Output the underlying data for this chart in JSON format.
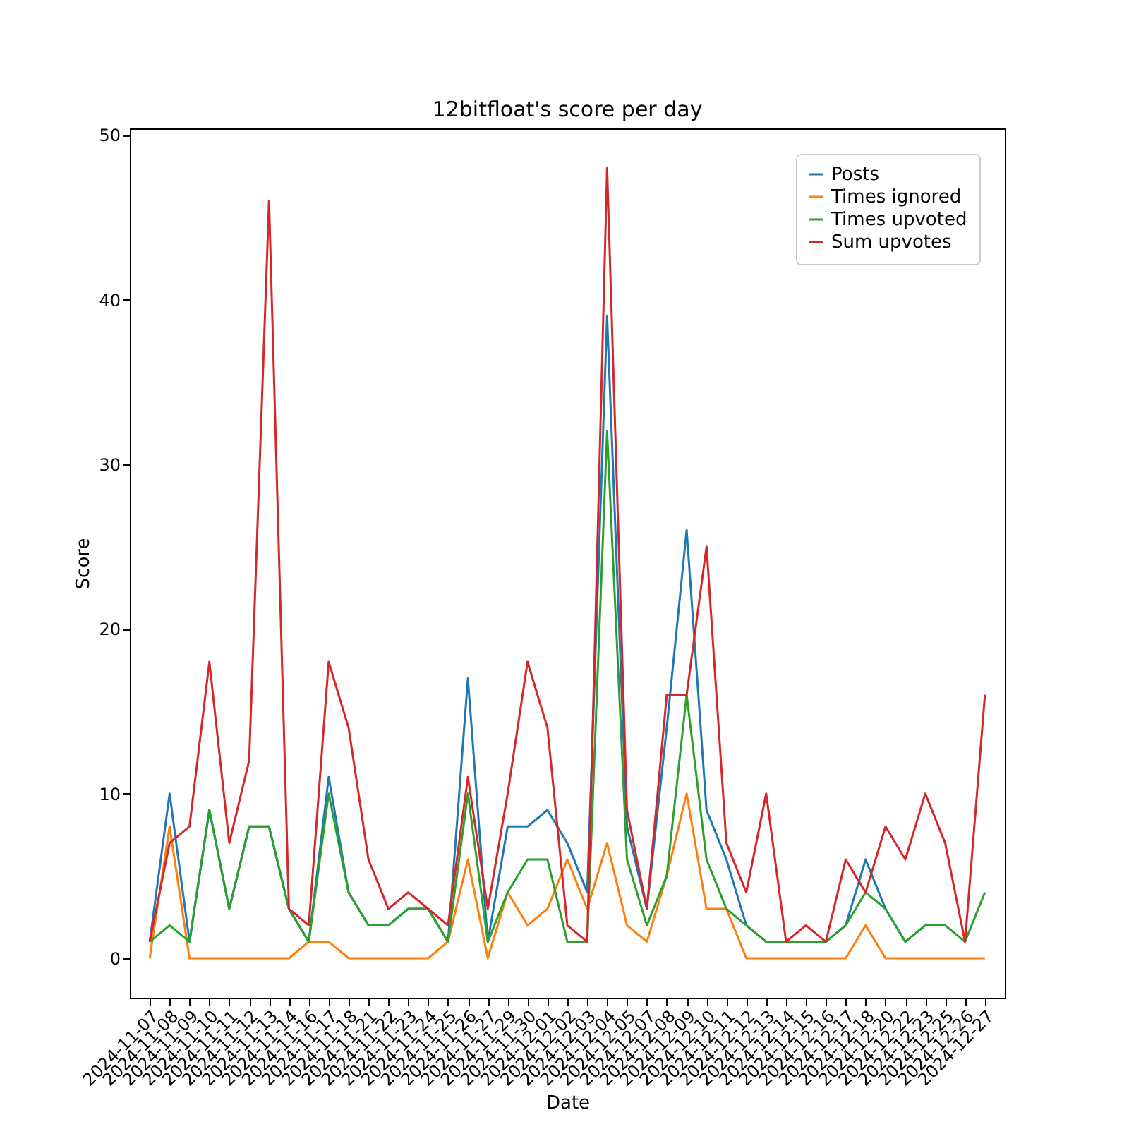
{
  "chart_data": {
    "type": "line",
    "title": "12bitfloat's score per day",
    "xlabel": "Date",
    "ylabel": "Score",
    "categories": [
      "2024-11-07",
      "2024-11-08",
      "2024-11-09",
      "2024-11-10",
      "2024-11-11",
      "2024-11-12",
      "2024-11-13",
      "2024-11-14",
      "2024-11-16",
      "2024-11-17",
      "2024-11-18",
      "2024-11-21",
      "2024-11-22",
      "2024-11-23",
      "2024-11-24",
      "2024-11-25",
      "2024-11-26",
      "2024-11-27",
      "2024-11-29",
      "2024-11-30",
      "2024-12-01",
      "2024-12-02",
      "2024-12-03",
      "2024-12-04",
      "2024-12-05",
      "2024-12-07",
      "2024-12-08",
      "2024-12-09",
      "2024-12-10",
      "2024-12-11",
      "2024-12-12",
      "2024-12-13",
      "2024-12-14",
      "2024-12-15",
      "2024-12-16",
      "2024-12-17",
      "2024-12-18",
      "2024-12-20",
      "2024-12-22",
      "2024-12-23",
      "2024-12-25",
      "2024-12-26",
      "2024-12-27"
    ],
    "series": [
      {
        "name": "Posts",
        "color": "#1f77b4",
        "values": [
          1,
          10,
          1,
          9,
          3,
          8,
          8,
          3,
          1,
          11,
          4,
          2,
          2,
          3,
          3,
          1,
          17,
          1,
          8,
          8,
          9,
          7,
          4,
          39,
          8,
          3,
          14,
          26,
          9,
          6,
          2,
          1,
          1,
          1,
          1,
          2,
          6,
          3,
          1,
          2,
          null,
          null,
          null
        ]
      },
      {
        "name": "Times ignored",
        "color": "#ff7f0e",
        "values": [
          0,
          8,
          0,
          0,
          0,
          0,
          0,
          0,
          1,
          1,
          0,
          0,
          0,
          0,
          0,
          1,
          6,
          0,
          4,
          2,
          3,
          6,
          3,
          7,
          2,
          1,
          5,
          10,
          3,
          3,
          0,
          0,
          0,
          0,
          0,
          0,
          2,
          0,
          0,
          0,
          0,
          0,
          0
        ]
      },
      {
        "name": "Times upvoted",
        "color": "#2ca02c",
        "values": [
          1,
          2,
          1,
          9,
          3,
          8,
          8,
          3,
          1,
          10,
          4,
          2,
          2,
          3,
          3,
          1,
          10,
          1,
          4,
          6,
          6,
          1,
          1,
          32,
          6,
          2,
          5,
          16,
          6,
          3,
          2,
          1,
          1,
          1,
          1,
          2,
          4,
          3,
          1,
          2,
          2,
          1,
          4
        ]
      },
      {
        "name": "Sum upvotes",
        "color": "#d62728",
        "values": [
          1,
          7,
          8,
          18,
          7,
          12,
          46,
          3,
          2,
          18,
          14,
          6,
          3,
          4,
          3,
          2,
          11,
          3,
          10,
          18,
          14,
          2,
          1,
          48,
          9,
          3,
          16,
          16,
          25,
          7,
          4,
          10,
          1,
          2,
          1,
          6,
          4,
          8,
          6,
          10,
          7,
          1,
          16
        ]
      }
    ],
    "ylim": [
      -2.4,
      50.4
    ],
    "yticks": [
      0,
      10,
      20,
      30,
      40,
      50
    ],
    "grid": false,
    "legend": "top right",
    "line_style": "solid"
  }
}
